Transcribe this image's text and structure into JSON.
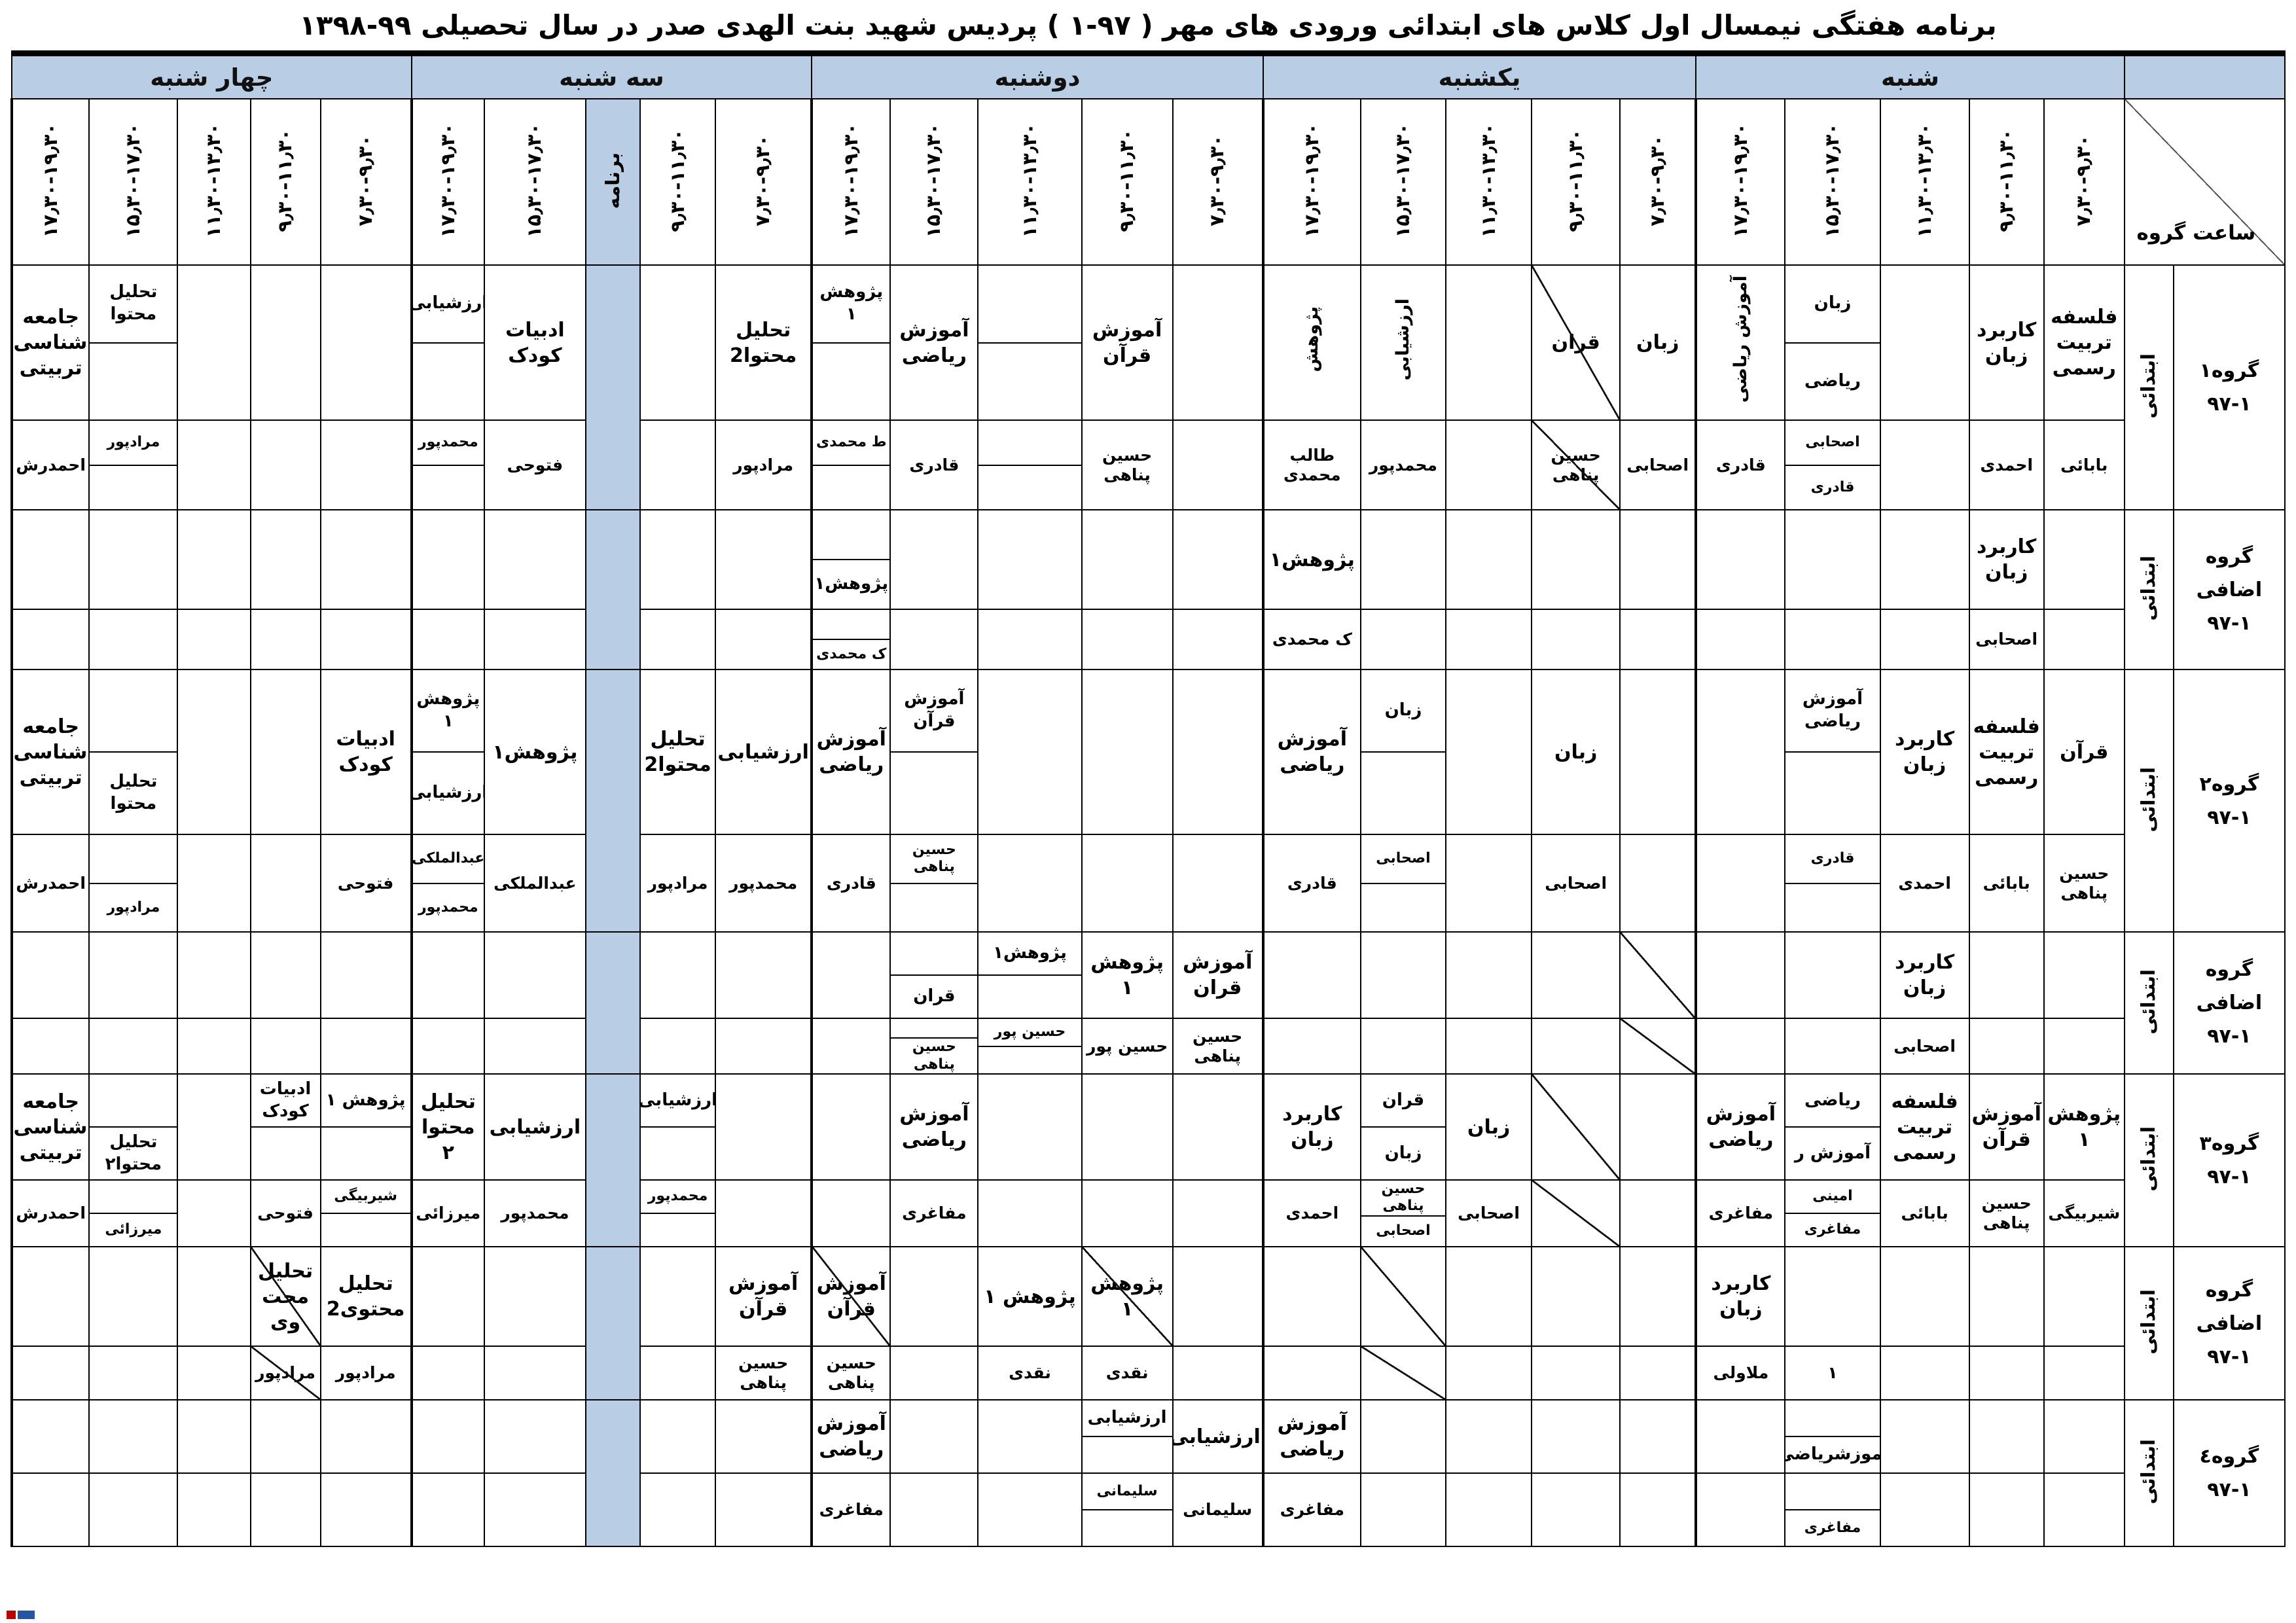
{
  "title": "برنامه هفتگی نیمسال اول کلاس های ابتدائی ورودی های مهر ( ۹۷-۱ ) پردیس شهید بنت الهدی صدر در سال تحصیلی ۹۹-۱۳۹۸",
  "corner_label": "ساعت گروه",
  "program_label": "برنامه",
  "time_slots": [
    "۷٫۳۰-۹٫۳۰",
    "۹٫۳۰-۱۱٫۳۰",
    "۱۱٫۳۰-۱۳٫۳۰",
    "۱۵٫۳۰-۱۷٫۳۰",
    "۱۷٫۳۰-۱۹٫۳۰"
  ],
  "colors": {
    "header_blue": "#B9CDE5",
    "border": "#000000"
  },
  "days": [
    {
      "id": "sat",
      "label": "شنبه",
      "slots": [
        0,
        1,
        2,
        3,
        4
      ]
    },
    {
      "id": "sun",
      "label": "یکشنبه",
      "slots": [
        0,
        1,
        2,
        3,
        4
      ]
    },
    {
      "id": "mon",
      "label": "دوشنبه",
      "slots": [
        0,
        1,
        2,
        3,
        4
      ]
    },
    {
      "id": "tue",
      "label": "سه شنبه",
      "slots": [
        0,
        1,
        "P",
        3,
        4
      ]
    },
    {
      "id": "wed",
      "label": "چهار شنبه",
      "slots": [
        0,
        1,
        2,
        3,
        4
      ]
    }
  ],
  "groups": [
    {
      "name": "گروه۱",
      "code": "۹۷-۱",
      "level": "ابتدائی",
      "days": {
        "sat": [
          {
            "c": "فلسفه تربیت رسمی",
            "t": "بابائی"
          },
          {
            "c": "کاربرد زبان",
            "t": "احمدی"
          },
          null,
          {
            "ct": [
              "زبان",
              "ریاضی"
            ],
            "tt": [
              "اصحابی",
              "قادری"
            ]
          },
          {
            "c": "آموزش ریاضی",
            "rot": 1,
            "t": "قادری"
          }
        ],
        "sun": [
          {
            "c": "زبان",
            "t": "اصحابی"
          },
          {
            "c": "قران",
            "t": "حسین پناهی",
            "dc": 1,
            "dt": 1
          },
          null,
          {
            "c": "ارزشیابی",
            "rot": 1,
            "t": "محمدپور"
          },
          {
            "c": "پژوهش",
            "rot": 1,
            "t": "طالب محمدی"
          }
        ],
        "mon": [
          null,
          {
            "c": "آموزش قرآن",
            "t": "حسین پناهی"
          },
          {
            "ct": [
              "",
              ""
            ],
            "tt": [
              "",
              ""
            ]
          },
          {
            "c": "آموزش ریاضی",
            "t": "قادری"
          },
          {
            "ct": [
              "پژوهش ۱",
              ""
            ],
            "tt": [
              "ط محمدی",
              ""
            ]
          }
        ],
        "tue": [
          {
            "c": "تحلیل محتوا2",
            "t": "مرادپور"
          },
          null,
          {
            "c": "ادبیات کودک",
            "t": "فتوحی"
          },
          {
            "ct": [
              "ارزشیابی",
              ""
            ],
            "tt": [
              "محمدپور",
              ""
            ]
          }
        ],
        "wed": [
          null,
          null,
          null,
          {
            "ct": [
              "تحلیل محتوا",
              ""
            ],
            "tt": [
              "مرادپور",
              ""
            ]
          },
          {
            "c": "جامعه شناسی تربیتی",
            "t": "احمدرش"
          }
        ]
      }
    },
    {
      "name": "گروه اضافی",
      "code": "۹۷-۱",
      "level": "ابتدائی",
      "days": {
        "sat": [
          null,
          {
            "c": "کاربرد زبان",
            "t": "اصحابی"
          },
          null,
          null,
          null
        ],
        "sun": [
          null,
          null,
          null,
          null,
          {
            "c": "پژوهش۱",
            "t": "ک محمدی"
          }
        ],
        "mon": [
          null,
          null,
          null,
          null,
          {
            "ct": [
              "",
              "پژوهش۱"
            ],
            "tt": [
              "",
              "ک محمدی"
            ]
          }
        ],
        "tue": [
          null,
          null,
          null,
          null
        ],
        "wed": [
          null,
          null,
          null,
          null,
          null
        ]
      }
    },
    {
      "name": "گروه۲",
      "code": "۹۷-۱",
      "level": "ابتدائی",
      "days": {
        "sat": [
          {
            "c": "قرآن",
            "t": "حسین پناهی"
          },
          {
            "c": "فلسفه تربیت رسمی",
            "t": "بابائی"
          },
          {
            "c": "کاربرد زبان",
            "t": "احمدی"
          },
          {
            "ct": [
              "آموزش ریاضی",
              ""
            ],
            "tt": [
              "قادری",
              ""
            ]
          },
          null
        ],
        "sun": [
          null,
          {
            "c": "زبان",
            "t": "اصحابی"
          },
          null,
          {
            "ct": [
              "زبان",
              ""
            ],
            "tt": [
              "اصحابی",
              ""
            ]
          },
          {
            "c": "آموزش ریاضی",
            "t": "قادری"
          }
        ],
        "mon": [
          null,
          null,
          null,
          {
            "ct": [
              "آموزش قرآن",
              ""
            ],
            "tt": [
              "حسین پناهی",
              ""
            ]
          },
          {
            "c": "آموزش ریاضی",
            "t": "قادری"
          }
        ],
        "tue": [
          {
            "c": "ارزشیابی",
            "t": "محمدپور"
          },
          {
            "c": "تحلیل محتوا2",
            "t": "مرادپور"
          },
          {
            "c": "پژوهش۱",
            "t": "عبدالملکی"
          },
          {
            "ct": [
              "پژوهش ۱",
              "ارزشیابی"
            ],
            "tt": [
              "عبدالملکی",
              "محمدپور"
            ]
          }
        ],
        "wed": [
          {
            "c": "ادبیات کودک",
            "t": "فتوحی"
          },
          null,
          null,
          {
            "ct": [
              "",
              "تحلیل محتوا"
            ],
            "tt": [
              "",
              "مرادپور"
            ]
          },
          {
            "c": "جامعه شناسی تربیتی",
            "t": "احمدرش"
          }
        ]
      }
    },
    {
      "name": "گروه اضافی",
      "code": "۹۷-۱",
      "level": "ابتدائی",
      "days": {
        "sat": [
          null,
          null,
          {
            "c": "کاربرد زبان",
            "t": "اصحابی"
          },
          null,
          null
        ],
        "sun": [
          {
            "dc": 1,
            "dt": 1
          },
          null,
          null,
          null,
          null
        ],
        "mon": [
          {
            "c": "آموزش قران",
            "t": "حسین پناهی"
          },
          {
            "c": "پژوهش ۱",
            "t": "حسین پور"
          },
          {
            "ct": [
              "پژوهش۱",
              ""
            ],
            "tt": [
              "حسین پور",
              ""
            ]
          },
          {
            "ct": [
              "",
              "قران"
            ],
            "tt": [
              "",
              "حسین پناهی"
            ]
          },
          null
        ],
        "tue": [
          null,
          null,
          null,
          null
        ],
        "wed": [
          null,
          null,
          null,
          null,
          null
        ]
      }
    },
    {
      "name": "گروه۳",
      "code": "۹۷-۱",
      "level": "ابتدائی",
      "days": {
        "sat": [
          {
            "c": "پژوهش ۱",
            "t": "شیربیگی"
          },
          {
            "c": "آموزش قرآن",
            "t": "حسین پناهی"
          },
          {
            "c": "فلسفه تربیت رسمی",
            "t": "بابائی"
          },
          {
            "ct": [
              "ریاضی",
              "آموزش ر"
            ],
            "tt": [
              "امینی",
              "مفاغری"
            ]
          },
          {
            "c": "آموزش ریاضی",
            "t": "مفاغری"
          }
        ],
        "sun": [
          null,
          {
            "dc": 1,
            "dt": 1
          },
          {
            "c": "زبان",
            "t": "اصحابی"
          },
          {
            "ct": [
              "قران",
              "زبان"
            ],
            "tt": [
              "حسین پناهی",
              "اصحابی"
            ]
          },
          {
            "c": "کاربرد زبان",
            "t": "احمدی"
          }
        ],
        "mon": [
          null,
          null,
          null,
          {
            "c": "آموزش ریاضی",
            "t": "مفاغری"
          },
          null
        ],
        "tue": [
          null,
          {
            "ct": [
              "ارزشیابی",
              ""
            ],
            "tt": [
              "محمدپور",
              ""
            ]
          },
          {
            "c": "ارزشیابی",
            "t": "محمدپور"
          },
          {
            "c": "تحلیل محتوا ۲",
            "t": "میرزائی"
          }
        ],
        "wed": [
          {
            "ct": [
              "پژوهش ۱",
              ""
            ],
            "tt": [
              "شیربیگی",
              ""
            ]
          },
          {
            "ct": [
              "ادبیات کودک",
              ""
            ],
            "t": "فتوحی"
          },
          null,
          {
            "ct": [
              "",
              "تحلیل محتوا۲"
            ],
            "tt": [
              "",
              "میرزائی"
            ]
          },
          {
            "c": "جامعه شناسی تربیتی",
            "t": "احمدرش"
          }
        ]
      }
    },
    {
      "name": "گروه اضافی",
      "code": "۹۷-۱",
      "level": "ابتدائی",
      "days": {
        "sat": [
          null,
          null,
          null,
          {
            "t": "۱"
          },
          {
            "c": "کاربرد زبان",
            "t": "ملاولی"
          }
        ],
        "sun": [
          null,
          null,
          null,
          {
            "dc": 1,
            "dt": 1
          },
          null
        ],
        "mon": [
          null,
          {
            "c": "پژوهش ۱",
            "t": "نقدی",
            "dc": 1
          },
          {
            "c": "پژوهش ۱",
            "t": "نقدی"
          },
          null,
          {
            "c": "آموزش قرآن",
            "t": "حسین پناهی",
            "dc": 1
          }
        ],
        "tue": [
          {
            "c": "آموزش قرآن",
            "t": "حسین پناهی"
          },
          null,
          null,
          null
        ],
        "wed": [
          {
            "c": "تحلیل محتوی2",
            "t": "مرادپور"
          },
          {
            "c": "تحلیل محت وی",
            "t": "مرادپور",
            "dc": 1,
            "dt": 1
          },
          null,
          null,
          null
        ]
      }
    },
    {
      "name": "گروه٤",
      "code": "۹۷-۱",
      "level": "ابتدائی",
      "days": {
        "sat": [
          null,
          null,
          null,
          {
            "ct": [
              "",
              "آموزشریاضی"
            ],
            "tt": [
              "",
              "مفاغری"
            ]
          },
          null
        ],
        "sun": [
          null,
          null,
          null,
          null,
          {
            "c": "آموزش ریاضی",
            "t": "مفاغری"
          }
        ],
        "mon": [
          {
            "c": "ارزشیابی",
            "t": "سلیمانی"
          },
          {
            "ct": [
              "ارزشیابی",
              ""
            ],
            "tt": [
              "سلیمانی",
              ""
            ]
          },
          null,
          null,
          {
            "c": "آموزش ریاضی",
            "t": "مفاغری"
          }
        ],
        "tue": [
          null,
          null,
          null,
          null
        ],
        "wed": [
          null,
          null,
          null,
          null,
          null
        ]
      }
    }
  ]
}
